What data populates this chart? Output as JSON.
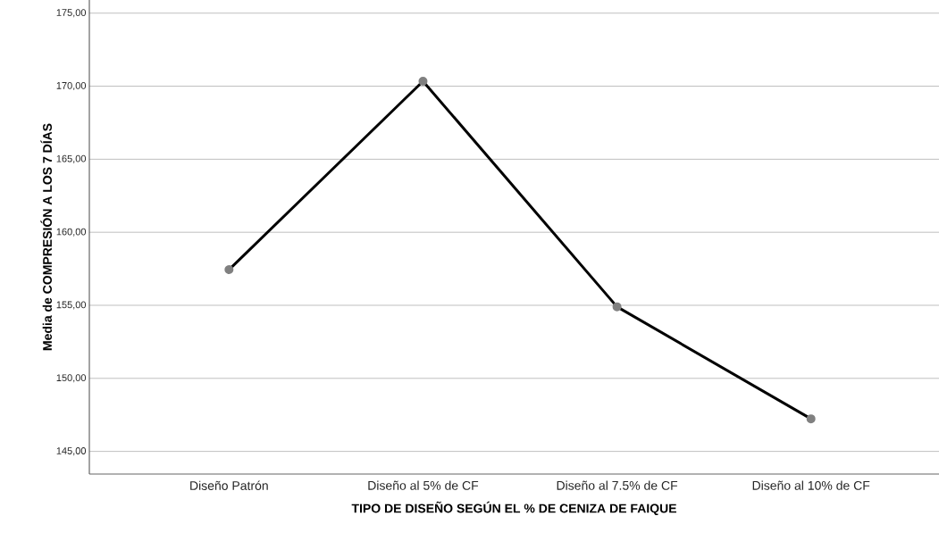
{
  "chart_data": {
    "type": "line",
    "xlabel": "TIPO DE DISEÑO SEGÚN EL % DE CENIZA DE FAIQUE",
    "ylabel": "Media de COMPRESIÓN A LOS 7 DÍAS",
    "categories": [
      "Diseño Patrón",
      "Diseño al 5% de CF",
      "Diseño al 7.5% de CF",
      "Diseño al 10% de CF"
    ],
    "series": [
      {
        "color": "#000000",
        "values": [
          157.44,
          170.34,
          154.9,
          147.23
        ]
      }
    ],
    "ylim": [
      143.45,
      175.9
    ],
    "yticks": [
      {
        "value": 145,
        "label": "145,00"
      },
      {
        "value": 150,
        "label": "150,00"
      },
      {
        "value": 155,
        "label": "155,00"
      },
      {
        "value": 160,
        "label": "160,00"
      },
      {
        "value": 165,
        "label": "165,00"
      },
      {
        "value": 170,
        "label": "170,00"
      },
      {
        "value": 175,
        "label": "175,00"
      }
    ],
    "grid": "y",
    "marker": "circle",
    "line_style": "solid"
  }
}
